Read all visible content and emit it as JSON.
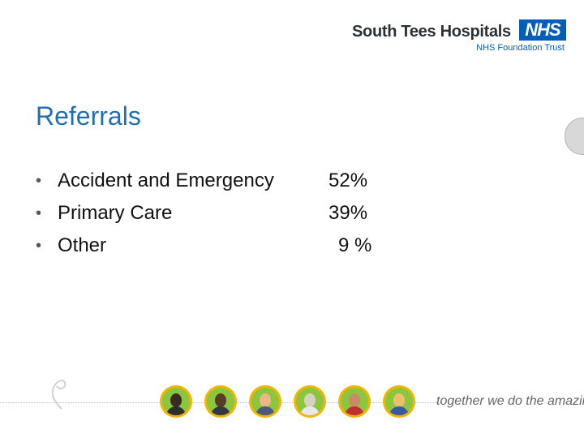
{
  "header": {
    "org_name": "South Tees Hospitals",
    "nhs_label": "NHS",
    "subtitle": "NHS Foundation Trust"
  },
  "slide": {
    "title": "Referrals",
    "bullets": [
      {
        "label": "Accident and Emergency",
        "value": "52%"
      },
      {
        "label": "Primary Care",
        "value": "39%"
      },
      {
        "label": "Other",
        "value": "9 %"
      }
    ]
  },
  "footer": {
    "tagline": "together we do the amazing"
  }
}
